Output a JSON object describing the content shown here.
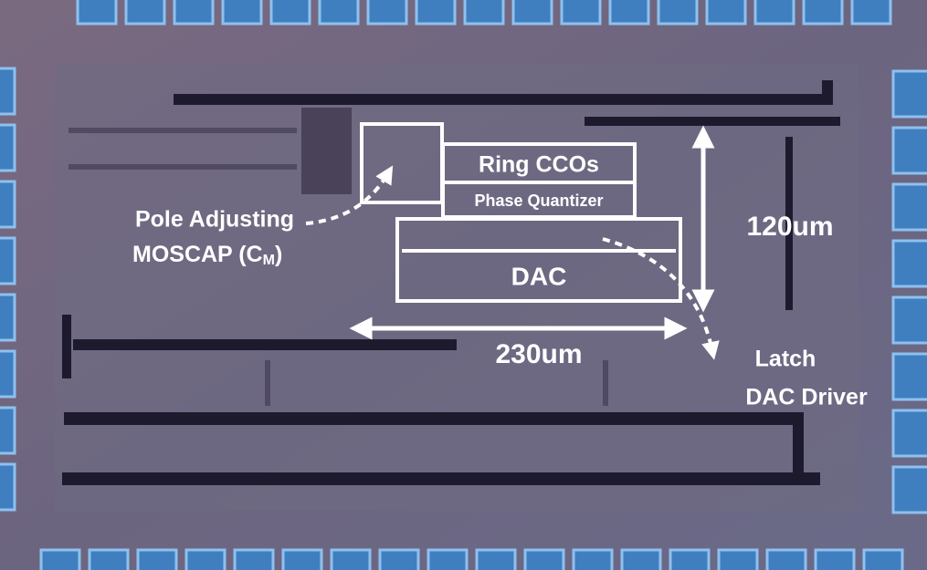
{
  "labels": {
    "ring_ccos": "Ring CCOs",
    "phase_quantizer": "Phase Quantizer",
    "dac": "DAC",
    "height": "120um",
    "width": "230um",
    "pole_adjusting": "Pole Adjusting",
    "moscap": {
      "prefix": "MOSCAP (C",
      "subscript": "M",
      "suffix": ")"
    },
    "latch": "Latch",
    "dac_driver": "DAC Driver"
  }
}
